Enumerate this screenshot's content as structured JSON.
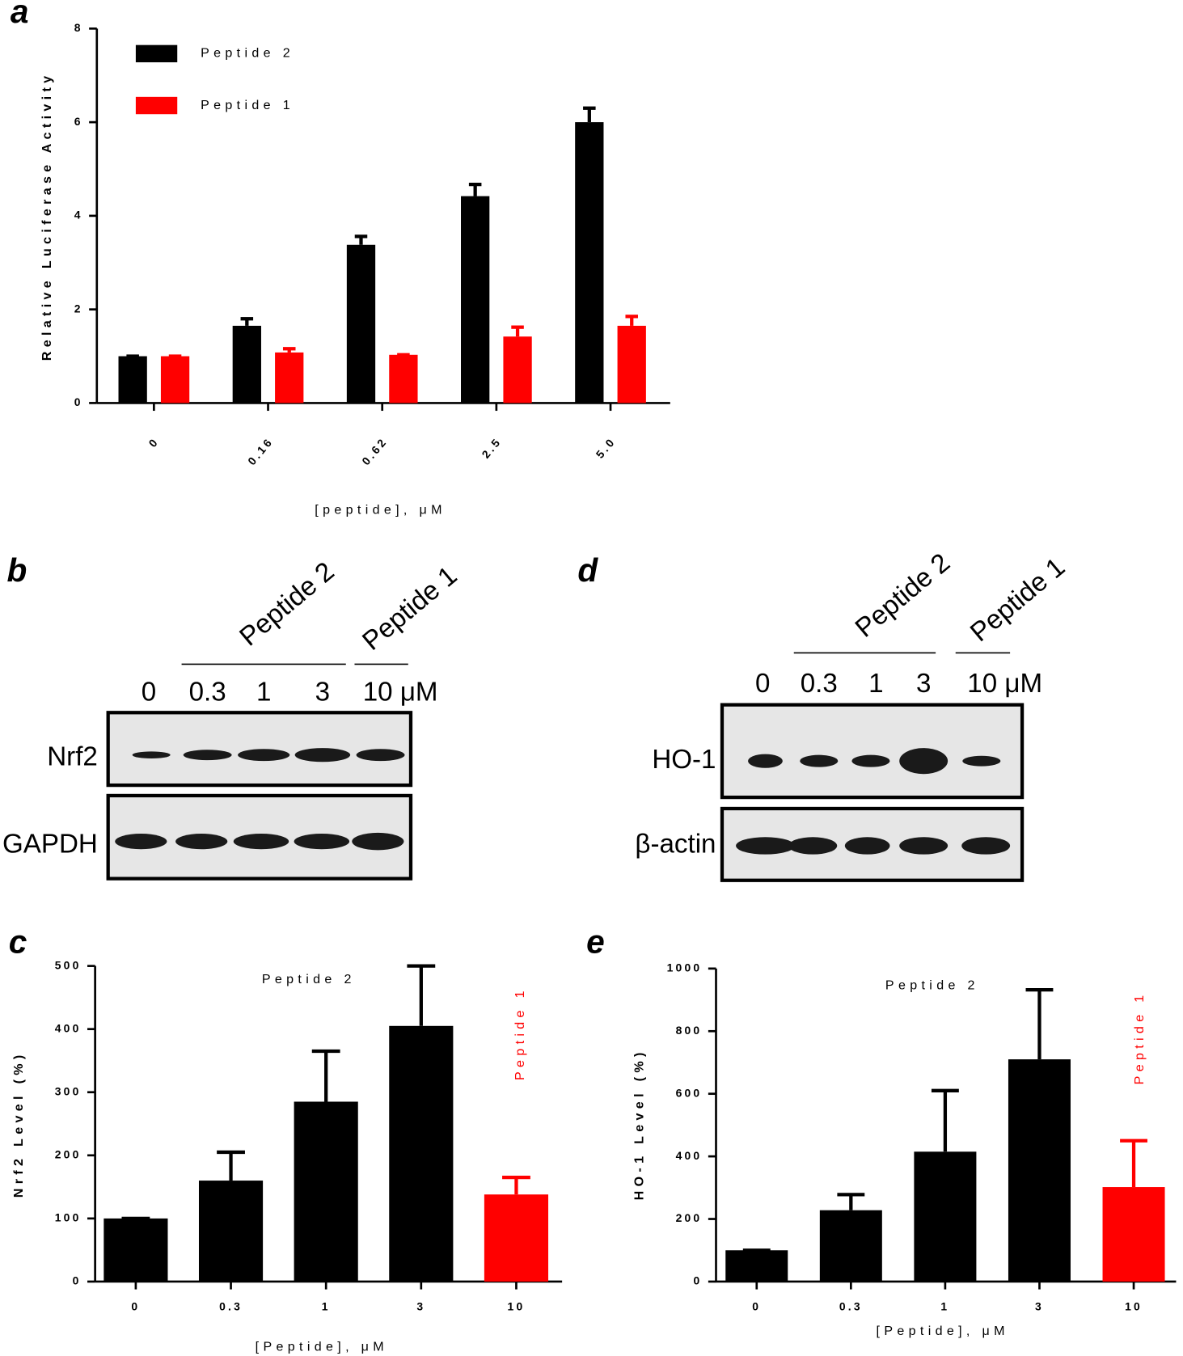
{
  "chart_data": [
    {
      "type": "bar",
      "panel_label": "a",
      "y_label": "Relative Luciferase Activity",
      "x_label": "[peptide], μM",
      "categories": [
        "0",
        "0.16",
        "0.62",
        "2.5",
        "5.0"
      ],
      "series": [
        {
          "name": "Peptide 2",
          "color": "#000000",
          "values": [
            1.0,
            1.65,
            3.38,
            4.42,
            6.0
          ],
          "errors": [
            0,
            0.15,
            0.18,
            0.25,
            0.3
          ]
        },
        {
          "name": "Peptide 1",
          "color": "#ff0000",
          "values": [
            1.0,
            1.08,
            1.03,
            1.42,
            1.65
          ],
          "errors": [
            0,
            0.08,
            0,
            0.2,
            0.2
          ]
        }
      ],
      "ylim": [
        0,
        8
      ],
      "yticks": [
        0,
        2,
        4,
        6,
        8
      ]
    },
    {
      "type": "bar",
      "panel_label": "c",
      "y_label": "Nrf2 Level (%)",
      "x_label": "[Peptide], μM",
      "categories": [
        "0",
        "0.3",
        "1",
        "3",
        "10"
      ],
      "values": [
        100,
        160,
        285,
        405,
        138
      ],
      "errors": [
        0,
        45,
        80,
        95,
        27
      ],
      "colors": [
        "#000000",
        "#000000",
        "#000000",
        "#000000",
        "#ff0000"
      ],
      "annotations": [
        {
          "text": "Peptide 2",
          "color": "#000000"
        },
        {
          "text": "Peptide 1",
          "color": "#ff0000"
        }
      ],
      "ylim": [
        0,
        500
      ],
      "yticks": [
        0,
        100,
        200,
        300,
        400,
        500
      ]
    },
    {
      "type": "bar",
      "panel_label": "e",
      "y_label": "HO-1 Level (%)",
      "x_label": "[Peptide], μM",
      "categories": [
        "0",
        "0.3",
        "1",
        "3",
        "10"
      ],
      "values": [
        100,
        228,
        415,
        710,
        302
      ],
      "errors": [
        0,
        50,
        195,
        222,
        148
      ],
      "colors": [
        "#000000",
        "#000000",
        "#000000",
        "#000000",
        "#ff0000"
      ],
      "annotations": [
        {
          "text": "Peptide 2",
          "color": "#000000"
        },
        {
          "text": "Peptide 1",
          "color": "#ff0000"
        }
      ],
      "ylim": [
        0,
        1000
      ],
      "yticks": [
        0,
        200,
        400,
        600,
        800,
        1000
      ]
    }
  ],
  "blots": [
    {
      "panel_label": "b",
      "groups": [
        "Peptide 2",
        "Peptide 1"
      ],
      "lanes": [
        "0",
        "0.3",
        "1",
        "3",
        "10 μM"
      ],
      "rows": [
        "Nrf2",
        "GAPDH"
      ]
    },
    {
      "panel_label": "d",
      "groups": [
        "Peptide 2",
        "Peptide 1"
      ],
      "lanes": [
        "0",
        "0.3",
        "1",
        "3",
        "10 μM"
      ],
      "rows": [
        "HO-1",
        "β-actin"
      ]
    }
  ]
}
